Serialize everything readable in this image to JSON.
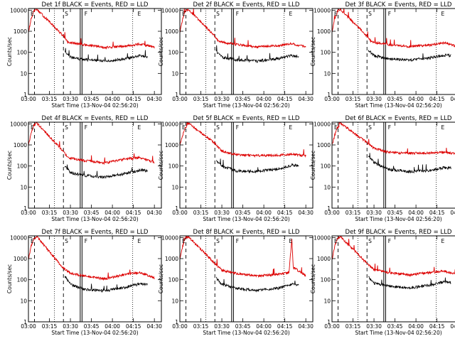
{
  "shared": {
    "x_ticks": [
      "03:00",
      "03:15",
      "03:30",
      "03:45",
      "04:00",
      "04:15",
      "04:30"
    ],
    "x_tick_minutes": [
      0,
      15,
      30,
      45,
      60,
      75,
      90
    ],
    "y_ticks": [
      "1",
      "10",
      "100",
      "1000",
      "10000"
    ],
    "y_tick_values": [
      1,
      10,
      100,
      1000,
      10000
    ],
    "xlabel": "Start Time (13-Nov-04 02:56:20)",
    "ylabel": "Counts/sec",
    "xlim_minutes": [
      0,
      95
    ],
    "ylim": [
      1,
      12000
    ],
    "yscale": "log",
    "colors": {
      "events": "#000000",
      "lld": "#dd0000"
    },
    "corner_marks": [
      "E",
      "S",
      "F",
      "E"
    ]
  },
  "chart_data": [
    {
      "type": "line",
      "title": "Det 1f BLACK = Events, RED = LLD",
      "vlines_dashed": [
        4.3,
        25
      ],
      "vlines_dotted": [
        18.5,
        74.5
      ],
      "vlines_solid": [
        37,
        38.3
      ],
      "series": [
        {
          "values": {
            "lld": [
              [
                0,
                900
              ],
              [
                2,
                4000
              ],
              [
                4,
                9000
              ],
              [
                6,
                11000
              ],
              [
                25,
                600
              ],
              [
                28,
                300
              ],
              [
                40,
                230
              ],
              [
                55,
                170
              ],
              [
                70,
                200
              ],
              [
                80,
                250
              ],
              [
                90,
                170
              ]
            ],
            "events": [
              [
                26,
                100
              ],
              [
                30,
                60
              ],
              [
                40,
                45
              ],
              [
                55,
                38
              ],
              [
                70,
                50
              ],
              [
                80,
                70
              ],
              [
                85,
                65
              ]
            ]
          }
        }
      ]
    },
    {
      "type": "line",
      "title": "Det 2f BLACK = Events, RED = LLD",
      "vlines_dashed": [
        4.3,
        25
      ],
      "vlines_dotted": [
        18.5,
        74.5
      ],
      "vlines_solid": [
        37,
        38.3
      ],
      "series": [
        {
          "values": {
            "lld": [
              [
                0,
                900
              ],
              [
                2,
                4000
              ],
              [
                4,
                9000
              ],
              [
                6,
                11000
              ],
              [
                25,
                600
              ],
              [
                28,
                320
              ],
              [
                40,
                240
              ],
              [
                55,
                180
              ],
              [
                70,
                210
              ],
              [
                80,
                260
              ],
              [
                90,
                180
              ]
            ],
            "events": [
              [
                26,
                110
              ],
              [
                30,
                60
              ],
              [
                40,
                45
              ],
              [
                55,
                38
              ],
              [
                70,
                50
              ],
              [
                80,
                70
              ],
              [
                85,
                65
              ]
            ]
          }
        }
      ]
    },
    {
      "type": "line",
      "title": "Det 3f BLACK = Events, RED = LLD",
      "vlines_dashed": [
        4.3,
        25
      ],
      "vlines_dotted": [
        18.5,
        74.5
      ],
      "vlines_solid": [
        37,
        38.3
      ],
      "series": [
        {
          "values": {
            "lld": [
              [
                0,
                900
              ],
              [
                2,
                4000
              ],
              [
                4,
                9000
              ],
              [
                6,
                11000
              ],
              [
                25,
                600
              ],
              [
                28,
                320
              ],
              [
                40,
                240
              ],
              [
                55,
                190
              ],
              [
                70,
                220
              ],
              [
                80,
                280
              ],
              [
                90,
                190
              ]
            ],
            "events": [
              [
                26,
                130
              ],
              [
                30,
                70
              ],
              [
                40,
                50
              ],
              [
                55,
                42
              ],
              [
                70,
                55
              ],
              [
                80,
                75
              ],
              [
                85,
                70
              ]
            ]
          }
        }
      ]
    },
    {
      "type": "line",
      "title": "Det 4f BLACK = Events, RED = LLD",
      "vlines_dashed": [
        4.3,
        25
      ],
      "vlines_dotted": [
        18.5,
        74.5
      ],
      "vlines_solid": [
        37,
        38.3
      ],
      "series": [
        {
          "values": {
            "lld": [
              [
                0,
                900
              ],
              [
                2,
                4000
              ],
              [
                4,
                9000
              ],
              [
                6,
                11000
              ],
              [
                25,
                500
              ],
              [
                28,
                250
              ],
              [
                40,
                180
              ],
              [
                55,
                140
              ],
              [
                70,
                220
              ],
              [
                80,
                250
              ],
              [
                90,
                150
              ]
            ],
            "events": [
              [
                26,
                100
              ],
              [
                30,
                50
              ],
              [
                40,
                35
              ],
              [
                55,
                30
              ],
              [
                70,
                45
              ],
              [
                80,
                65
              ],
              [
                85,
                60
              ]
            ]
          }
        }
      ]
    },
    {
      "type": "line",
      "title": "Det 5f BLACK = Events, RED = LLD",
      "vlines_dashed": [
        4.3,
        25
      ],
      "vlines_dotted": [
        18.5,
        74.5
      ],
      "vlines_solid": [
        37,
        38.3
      ],
      "series": [
        {
          "values": {
            "lld": [
              [
                0,
                1000
              ],
              [
                3,
                5000
              ],
              [
                6,
                11000
              ],
              [
                25,
                1200
              ],
              [
                30,
                500
              ],
              [
                40,
                350
              ],
              [
                55,
                310
              ],
              [
                70,
                330
              ],
              [
                80,
                360
              ],
              [
                90,
                300
              ]
            ],
            "events": [
              [
                26,
                200
              ],
              [
                30,
                100
              ],
              [
                40,
                60
              ],
              [
                55,
                55
              ],
              [
                70,
                75
              ],
              [
                80,
                110
              ],
              [
                85,
                100
              ]
            ]
          }
        }
      ]
    },
    {
      "type": "line",
      "title": "Det 6f BLACK = Events, RED = LLD",
      "vlines_dashed": [
        4.3,
        25
      ],
      "vlines_dotted": [
        18.5,
        74.5
      ],
      "vlines_solid": [
        37,
        38.3
      ],
      "series": [
        {
          "values": {
            "lld": [
              [
                0,
                1000
              ],
              [
                3,
                5000
              ],
              [
                6,
                11000
              ],
              [
                25,
                1300
              ],
              [
                30,
                700
              ],
              [
                40,
                450
              ],
              [
                55,
                400
              ],
              [
                70,
                420
              ],
              [
                80,
                450
              ],
              [
                90,
                380
              ]
            ],
            "events": [
              [
                26,
                300
              ],
              [
                30,
                150
              ],
              [
                40,
                70
              ],
              [
                55,
                55
              ],
              [
                70,
                60
              ],
              [
                80,
                85
              ],
              [
                85,
                80
              ]
            ]
          }
        }
      ]
    },
    {
      "type": "line",
      "title": "Det 7f BLACK = Events, RED = LLD",
      "vlines_dashed": [
        4.3,
        25
      ],
      "vlines_dotted": [
        18.5,
        74.5
      ],
      "vlines_solid": [
        37,
        38.3
      ],
      "series": [
        {
          "values": {
            "lld": [
              [
                0,
                900
              ],
              [
                2,
                4000
              ],
              [
                4,
                9000
              ],
              [
                6,
                11000
              ],
              [
                25,
                350
              ],
              [
                30,
                200
              ],
              [
                40,
                150
              ],
              [
                55,
                110
              ],
              [
                70,
                180
              ],
              [
                80,
                220
              ],
              [
                90,
                120
              ]
            ],
            "events": [
              [
                26,
                150
              ],
              [
                30,
                60
              ],
              [
                40,
                35
              ],
              [
                55,
                30
              ],
              [
                70,
                45
              ],
              [
                80,
                65
              ],
              [
                85,
                60
              ]
            ]
          }
        }
      ]
    },
    {
      "type": "line",
      "title": "Det 8f BLACK = Events, RED = LLD",
      "vlines_dashed": [
        4.3,
        25
      ],
      "vlines_dotted": [
        18.5,
        74.5
      ],
      "vlines_solid": [
        37,
        38.3
      ],
      "series": [
        {
          "values": {
            "lld": [
              [
                0,
                900
              ],
              [
                2,
                4000
              ],
              [
                4,
                9000
              ],
              [
                6,
                11000
              ],
              [
                25,
                600
              ],
              [
                30,
                280
              ],
              [
                40,
                200
              ],
              [
                55,
                150
              ],
              [
                70,
                180
              ],
              [
                78,
                220
              ],
              [
                80,
                9000
              ],
              [
                81,
                400
              ],
              [
                90,
                150
              ]
            ],
            "events": [
              [
                26,
                120
              ],
              [
                30,
                60
              ],
              [
                40,
                40
              ],
              [
                55,
                30
              ],
              [
                70,
                40
              ],
              [
                80,
                60
              ],
              [
                85,
                55
              ]
            ]
          }
        }
      ]
    },
    {
      "type": "line",
      "title": "Det 9f BLACK = Events, RED = LLD",
      "vlines_dashed": [
        4.3,
        25
      ],
      "vlines_dotted": [
        18.5,
        74.5
      ],
      "vlines_solid": [
        37,
        38.3
      ],
      "series": [
        {
          "values": {
            "lld": [
              [
                0,
                900
              ],
              [
                2,
                4000
              ],
              [
                4,
                9000
              ],
              [
                6,
                11000
              ],
              [
                25,
                600
              ],
              [
                30,
                300
              ],
              [
                40,
                220
              ],
              [
                55,
                170
              ],
              [
                70,
                220
              ],
              [
                80,
                260
              ],
              [
                90,
                170
              ]
            ],
            "events": [
              [
                26,
                130
              ],
              [
                30,
                70
              ],
              [
                40,
                50
              ],
              [
                55,
                40
              ],
              [
                70,
                55
              ],
              [
                80,
                80
              ],
              [
                85,
                75
              ]
            ]
          }
        }
      ]
    }
  ]
}
